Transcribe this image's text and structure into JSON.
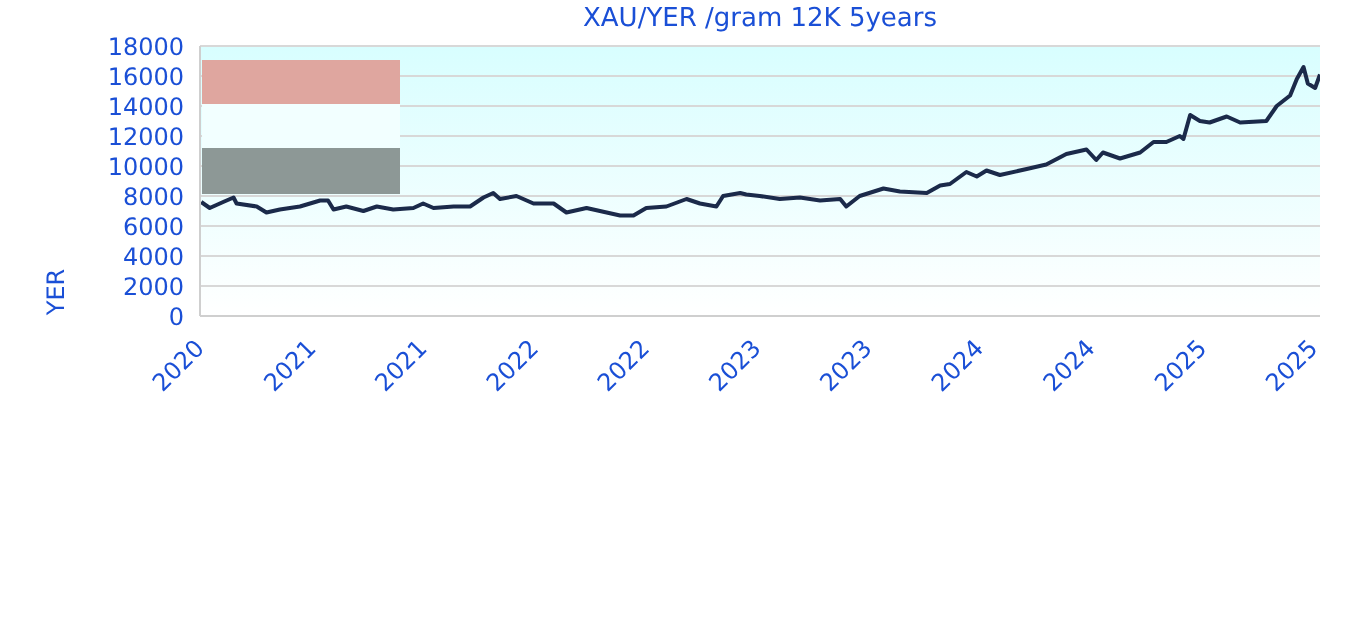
{
  "chart_data": {
    "type": "line",
    "title": "XAU/YER /gram 12K 5years",
    "ylabel": "YER",
    "x": [
      "2020-11-12",
      "2020-11-26",
      "2020-12-18",
      "2021-01-04",
      "2021-01-09",
      "2021-02-11",
      "2021-02-27",
      "2021-03-21",
      "2021-04-23",
      "2021-05-26",
      "2021-06-08",
      "2021-06-17",
      "2021-07-08",
      "2021-08-05",
      "2021-08-27",
      "2021-09-23",
      "2021-10-26",
      "2021-11-11",
      "2021-11-28",
      "2021-12-31",
      "2022-01-27",
      "2022-02-18",
      "2022-03-06",
      "2022-03-17",
      "2022-04-13",
      "2022-05-11",
      "2022-06-13",
      "2022-07-04",
      "2022-08-06",
      "2022-09-08",
      "2022-09-30",
      "2022-10-22",
      "2022-11-12",
      "2022-12-15",
      "2023-01-17",
      "2023-02-08",
      "2023-03-07",
      "2023-03-18",
      "2023-04-15",
      "2023-04-25",
      "2023-05-17",
      "2023-06-19",
      "2023-07-22",
      "2023-08-24",
      "2023-09-26",
      "2023-10-06",
      "2023-10-28",
      "2023-12-06",
      "2024-01-02",
      "2024-02-15",
      "2024-03-08",
      "2024-03-24",
      "2024-04-20",
      "2024-05-07",
      "2024-05-23",
      "2024-06-14",
      "2024-07-28",
      "2024-08-29",
      "2024-10-01",
      "2024-11-03",
      "2024-11-19",
      "2024-11-30",
      "2024-12-28",
      "2025-01-30",
      "2025-02-21",
      "2025-03-14",
      "2025-04-05",
      "2025-04-11",
      "2025-04-22",
      "2025-05-08",
      "2025-05-24",
      "2025-06-21",
      "2025-07-13",
      "2025-08-25",
      "2025-09-11",
      "2025-10-03",
      "2025-10-14",
      "2025-10-25",
      "2025-11-01",
      "2025-11-13",
      "2025-11-21"
    ],
    "series": [
      {
        "color": "#1b2a4a",
        "values": [
          7600,
          7200,
          7600,
          7900,
          7500,
          7300,
          6900,
          7100,
          7300,
          7700,
          7700,
          7100,
          7300,
          7000,
          7300,
          7100,
          7200,
          7500,
          7200,
          7300,
          7300,
          7900,
          8200,
          7800,
          8000,
          7500,
          7500,
          6900,
          7200,
          6900,
          6700,
          6700,
          7200,
          7300,
          7800,
          7500,
          7300,
          8000,
          8200,
          8100,
          8000,
          7800,
          7900,
          7700,
          7800,
          7300,
          8000,
          8500,
          8300,
          8200,
          8700,
          8800,
          9600,
          9300,
          9700,
          9400,
          9800,
          10100,
          10800,
          11100,
          10400,
          10900,
          10500,
          10900,
          11600,
          11600,
          12000,
          11800,
          13400,
          13000,
          12900,
          13300,
          12900,
          13000,
          14000,
          14700,
          15800,
          16600,
          15500,
          15200,
          16100
        ]
      }
    ],
    "xlim": [
      "2020-11-10",
      "2025-11-21"
    ],
    "xticks": [
      {
        "value": "2020-11-10",
        "label": "2020"
      },
      {
        "value": "2021-05-12",
        "label": "2021"
      },
      {
        "value": "2021-11-10",
        "label": "2021"
      },
      {
        "value": "2022-05-12",
        "label": "2022"
      },
      {
        "value": "2022-11-10",
        "label": "2022"
      },
      {
        "value": "2023-05-12",
        "label": "2023"
      },
      {
        "value": "2023-11-10",
        "label": "2023"
      },
      {
        "value": "2024-05-11",
        "label": "2024"
      },
      {
        "value": "2024-11-10",
        "label": "2024"
      },
      {
        "value": "2025-05-12",
        "label": "2025"
      },
      {
        "value": "2025-11-10",
        "label": "2025"
      }
    ],
    "ylim": [
      0,
      18000
    ],
    "yticks": [
      0,
      2000,
      4000,
      6000,
      8000,
      10000,
      12000,
      14000,
      16000,
      18000
    ],
    "grid": "y",
    "legend": false,
    "marker": "none",
    "line_style": "solid"
  }
}
